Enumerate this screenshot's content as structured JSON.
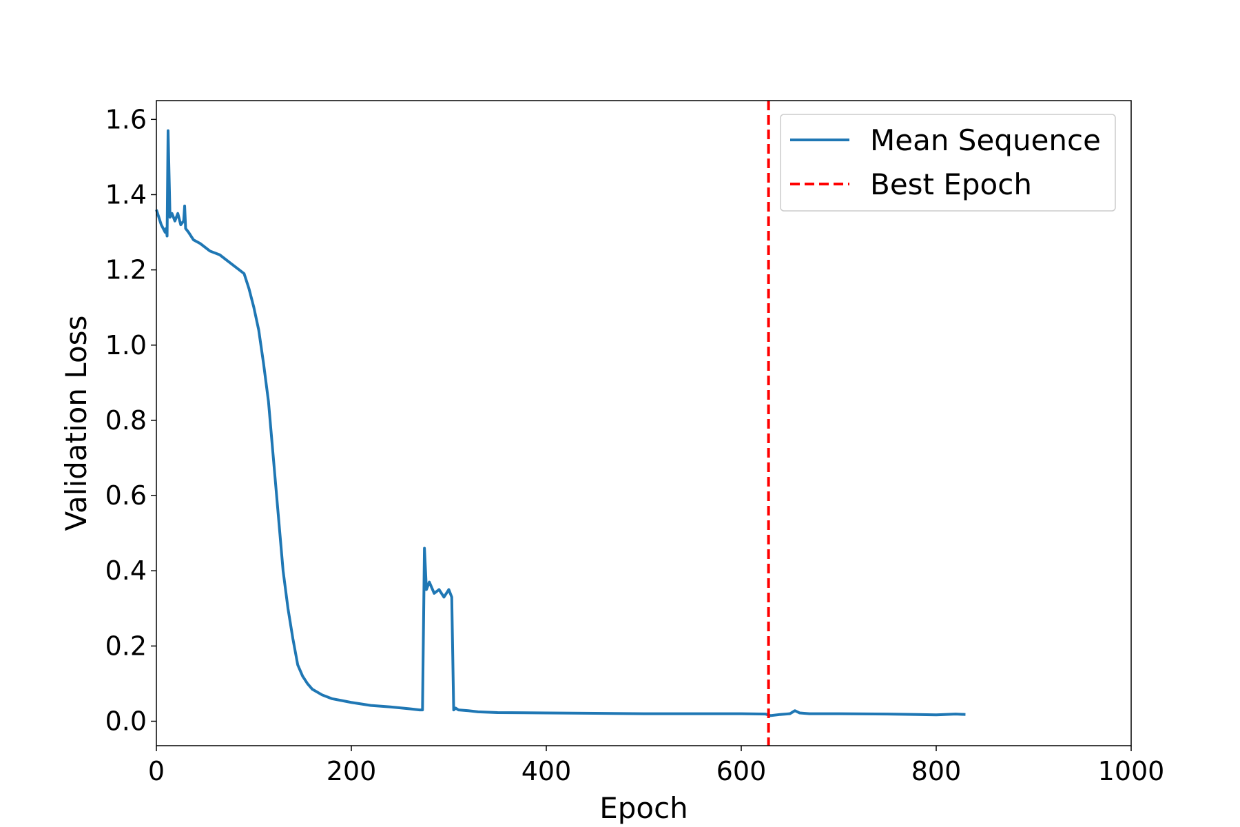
{
  "chart_data": {
    "type": "line",
    "title": "",
    "xlabel": "Epoch",
    "ylabel": "Validation Loss",
    "xlim": [
      0,
      1000
    ],
    "ylim": [
      -0.065,
      1.65
    ],
    "xticks": [
      0,
      200,
      400,
      600,
      800,
      1000
    ],
    "yticks": [
      0.0,
      0.2,
      0.4,
      0.6,
      0.8,
      1.0,
      1.2,
      1.4,
      1.6
    ],
    "xtick_labels": [
      "0",
      "200",
      "400",
      "600",
      "800",
      "1000"
    ],
    "ytick_labels": [
      "0.0",
      "0.2",
      "0.4",
      "0.6",
      "0.8",
      "1.0",
      "1.2",
      "1.4",
      "1.6"
    ],
    "grid": false,
    "legend_position": "top-right",
    "series": [
      {
        "name": "Mean Sequence",
        "color": "#1f77b4",
        "style": "solid",
        "x": [
          0,
          5,
          9,
          10,
          11,
          12,
          14,
          16,
          19,
          22,
          25,
          28,
          29,
          30,
          33,
          38,
          45,
          55,
          65,
          75,
          85,
          90,
          95,
          100,
          105,
          110,
          115,
          120,
          125,
          130,
          135,
          140,
          145,
          150,
          155,
          160,
          170,
          180,
          190,
          200,
          220,
          240,
          260,
          270,
          273,
          275,
          277,
          280,
          285,
          290,
          295,
          300,
          303,
          305,
          307,
          310,
          320,
          330,
          350,
          400,
          450,
          500,
          550,
          600,
          625,
          630,
          640,
          650,
          655,
          660,
          670,
          700,
          750,
          780,
          800,
          820,
          830
        ],
        "y": [
          1.36,
          1.32,
          1.3,
          1.31,
          1.29,
          1.57,
          1.34,
          1.35,
          1.33,
          1.35,
          1.32,
          1.33,
          1.37,
          1.31,
          1.3,
          1.28,
          1.27,
          1.25,
          1.24,
          1.22,
          1.2,
          1.19,
          1.15,
          1.1,
          1.04,
          0.95,
          0.85,
          0.7,
          0.55,
          0.4,
          0.3,
          0.22,
          0.15,
          0.12,
          0.1,
          0.085,
          0.07,
          0.06,
          0.055,
          0.05,
          0.042,
          0.038,
          0.033,
          0.03,
          0.03,
          0.46,
          0.35,
          0.37,
          0.34,
          0.35,
          0.33,
          0.35,
          0.33,
          0.03,
          0.035,
          0.03,
          0.028,
          0.025,
          0.023,
          0.022,
          0.021,
          0.02,
          0.02,
          0.02,
          0.019,
          0.015,
          0.018,
          0.02,
          0.028,
          0.022,
          0.02,
          0.02,
          0.019,
          0.018,
          0.017,
          0.019,
          0.018
        ]
      },
      {
        "name": "Best Epoch",
        "color": "#ff0000",
        "style": "dashed",
        "type": "vline",
        "x": 628
      }
    ]
  }
}
